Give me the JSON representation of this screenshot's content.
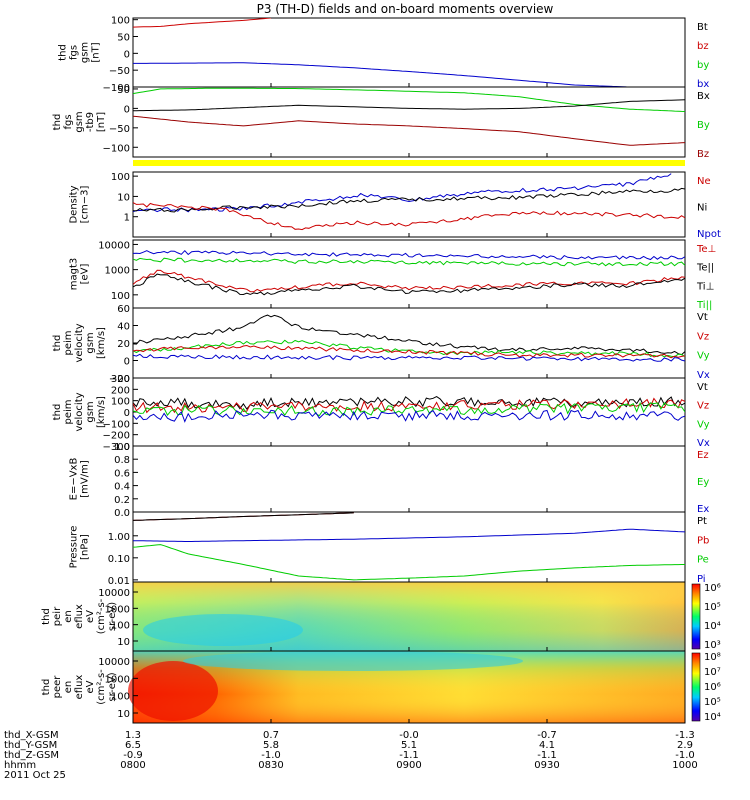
{
  "title": "P3 (TH-D) fields and on-board moments overview",
  "footer": {
    "row_labels": [
      "thd_X-GSM",
      "thd_Y-GSM",
      "thd_Z-GSM",
      "hhmm",
      "2011 Oct 25"
    ],
    "columns": [
      [
        "1.3",
        "6.5",
        "-0.9",
        "0800"
      ],
      [
        "0.7",
        "5.8",
        "-1.0",
        "0830"
      ],
      [
        "-0.0",
        "5.1",
        "-1.1",
        "0900"
      ],
      [
        "-0.7",
        "4.1",
        "-1.1",
        "0930"
      ],
      [
        "-1.3",
        "2.9",
        "-1.0",
        "1000"
      ]
    ]
  },
  "colorbar_ion": [
    "10⁶",
    "10⁵",
    "10⁴",
    "10³"
  ],
  "colorbar_ion_top": "10⁶",
  "colorbar_electron": [
    "10⁸",
    "10⁷",
    "10⁶",
    "10⁵",
    "10⁴"
  ],
  "colors": {
    "black": "#000000",
    "red": "#cc0000",
    "green": "#00cc00",
    "blue": "#0000cc",
    "darkred": "#990000",
    "yellow": "#ffff00"
  },
  "chart_data": {
    "type": "line",
    "x_range": [
      "0800",
      "1000"
    ],
    "panels": [
      {
        "id": "fgs",
        "ylabel": [
          "thd",
          "fgs",
          "gsm",
          "[nT]"
        ],
        "yticks": [
          "100",
          "50",
          "0",
          "−50",
          "−100"
        ],
        "ylim": [
          -100,
          105
        ],
        "scale": "linear",
        "legend": [
          {
            "text": "Bt",
            "color": "#000000"
          },
          {
            "text": "bz",
            "color": "#cc0000"
          },
          {
            "text": "by",
            "color": "#00cc00"
          },
          {
            "text": "bx",
            "color": "#0000cc"
          }
        ],
        "series": [
          {
            "color": "#cc0000",
            "x": [
              0,
              0.05,
              0.1,
              0.2,
              0.25
            ],
            "y": [
              78,
              80,
              88,
              98,
              105
            ]
          },
          {
            "color": "#0000cc",
            "x": [
              0,
              0.1,
              0.2,
              0.3,
              0.4,
              0.5,
              0.6,
              0.7,
              0.8,
              0.9,
              1.0
            ],
            "y": [
              -30,
              -29,
              -28,
              -34,
              -43,
              -54,
              -66,
              -80,
              -94,
              -100,
              -104
            ]
          }
        ]
      },
      {
        "id": "fgs_despun",
        "ylabel": [
          "thd",
          "fgs",
          "gsm",
          "-tb9",
          "[nT]"
        ],
        "yticks": [
          "50",
          "0",
          "−50",
          "−100"
        ],
        "ylim": [
          -125,
          55
        ],
        "scale": "linear",
        "legend": [
          {
            "text": "Bx",
            "color": "#000000"
          },
          {
            "text": "By",
            "color": "#00cc00"
          },
          {
            "text": "Bz",
            "color": "#990000"
          }
        ],
        "series": [
          {
            "color": "#00cc00",
            "x": [
              0,
              0.05,
              0.15,
              0.3,
              0.45,
              0.6,
              0.7,
              0.8,
              0.9,
              1.0
            ],
            "y": [
              38,
              50,
              52,
              51,
              46,
              40,
              30,
              10,
              -2,
              -8
            ]
          },
          {
            "color": "#000000",
            "x": [
              0,
              0.1,
              0.2,
              0.3,
              0.4,
              0.5,
              0.6,
              0.7,
              0.8,
              0.9,
              1.0
            ],
            "y": [
              -6,
              -4,
              2,
              8,
              4,
              0,
              -2,
              0,
              6,
              18,
              22
            ]
          },
          {
            "color": "#990000",
            "x": [
              0,
              0.1,
              0.2,
              0.3,
              0.4,
              0.5,
              0.6,
              0.7,
              0.8,
              0.9,
              1.0
            ],
            "y": [
              -20,
              -35,
              -45,
              -32,
              -40,
              -45,
              -52,
              -60,
              -78,
              -95,
              -88
            ]
          }
        ]
      },
      {
        "id": "density",
        "ylabel": [
          "Density",
          "[cm−3]"
        ],
        "yticks": [
          "100",
          "10",
          "1"
        ],
        "ylim": [
          0.1,
          160
        ],
        "scale": "log",
        "legend": [
          {
            "text": "Ne",
            "color": "#cc0000"
          },
          {
            "text": "Ni",
            "color": "#000000"
          },
          {
            "text": "Npot",
            "color": "#0000cc"
          }
        ],
        "series": [
          {
            "color": "#0000cc",
            "x": [
              0,
              0.1,
              0.2,
              0.3,
              0.42,
              0.5,
              0.6,
              0.7,
              0.8,
              0.9,
              0.98
            ],
            "y": [
              2.2,
              2.2,
              2.5,
              5,
              12,
              6,
              14,
              20,
              25,
              40,
              150
            ]
          },
          {
            "color": "#000000",
            "x": [
              0,
              0.1,
              0.2,
              0.3,
              0.4,
              0.5,
              0.6,
              0.7,
              0.8,
              0.9,
              1.0
            ],
            "y": [
              2.0,
              2.2,
              3.0,
              3.5,
              6,
              7,
              8,
              9,
              12,
              18,
              20
            ]
          },
          {
            "color": "#cc0000",
            "x": [
              0,
              0.1,
              0.18,
              0.25,
              0.3,
              0.4,
              0.5,
              0.6,
              0.7,
              0.8,
              0.9,
              1.0
            ],
            "y": [
              4,
              3,
              2,
              0.5,
              0.25,
              0.5,
              0.4,
              0.8,
              1.5,
              1.5,
              1.2,
              1.0
            ]
          }
        ]
      },
      {
        "id": "temp",
        "ylabel": [
          "magt3",
          "[eV]"
        ],
        "yticks": [
          "10000",
          "1000",
          "100"
        ],
        "ylim": [
          30,
          15000
        ],
        "scale": "log",
        "legend": [
          {
            "text": "Te⊥",
            "color": "#cc0000"
          },
          {
            "text": "Te||",
            "color": "#000000"
          },
          {
            "text": "Ti⊥",
            "color": "#000000"
          },
          {
            "text": "Ti||",
            "color": "#00cc00"
          }
        ],
        "series": [
          {
            "color": "#0000cc",
            "x": [
              0,
              0.2,
              0.4,
              0.6,
              0.8,
              1.0
            ],
            "y": [
              5000,
              4500,
              4000,
              3500,
              3000,
              3000
            ]
          },
          {
            "color": "#00cc00",
            "x": [
              0,
              0.2,
              0.4,
              0.6,
              0.8,
              1.0
            ],
            "y": [
              2500,
              2200,
              2000,
              1800,
              1700,
              1700
            ]
          },
          {
            "color": "#cc0000",
            "x": [
              0,
              0.05,
              0.1,
              0.2,
              0.3,
              0.4,
              0.5,
              0.6,
              0.7,
              0.8,
              0.9,
              1.0
            ],
            "y": [
              300,
              900,
              500,
              150,
              200,
              300,
              180,
              200,
              250,
              300,
              280,
              500
            ]
          },
          {
            "color": "#000000",
            "x": [
              0,
              0.05,
              0.1,
              0.2,
              0.3,
              0.4,
              0.5,
              0.6,
              0.7,
              0.8,
              0.9,
              1.0
            ],
            "y": [
              200,
              700,
              350,
              100,
              150,
              220,
              130,
              150,
              200,
              250,
              230,
              400
            ]
          }
        ]
      },
      {
        "id": "velocity_esa",
        "ylabel": [
          "thd",
          "peim",
          "velocity",
          "gsm",
          "[km/s]"
        ],
        "yticks": [
          "60",
          "40",
          "20",
          "0",
          "−20"
        ],
        "ylim": [
          -20,
          60
        ],
        "scale": "linear",
        "legend": [
          {
            "text": "Vt",
            "color": "#000000"
          },
          {
            "text": "Vz",
            "color": "#cc0000"
          },
          {
            "text": "Vy",
            "color": "#00cc00"
          },
          {
            "text": "Vx",
            "color": "#0000cc"
          }
        ],
        "series": [
          {
            "color": "#000000",
            "x": [
              0,
              0.1,
              0.2,
              0.25,
              0.3,
              0.4,
              0.5,
              0.6,
              0.7,
              0.8,
              0.9,
              1.0
            ],
            "y": [
              20,
              28,
              38,
              52,
              38,
              30,
              22,
              15,
              12,
              14,
              12,
              8
            ]
          },
          {
            "color": "#00cc00",
            "x": [
              0,
              0.1,
              0.2,
              0.3,
              0.4,
              0.5,
              0.6,
              0.7,
              0.8,
              0.9,
              1.0
            ],
            "y": [
              10,
              15,
              20,
              22,
              15,
              10,
              8,
              10,
              8,
              8,
              5
            ]
          },
          {
            "color": "#cc0000",
            "x": [
              0,
              0.1,
              0.2,
              0.3,
              0.4,
              0.5,
              0.6,
              0.7,
              0.8,
              0.9,
              1.0
            ],
            "y": [
              12,
              14,
              15,
              14,
              12,
              10,
              8,
              6,
              6,
              6,
              4
            ]
          },
          {
            "color": "#0000cc",
            "x": [
              0,
              0.2,
              0.4,
              0.6,
              0.8,
              1.0
            ],
            "y": [
              5,
              4,
              3,
              3,
              2,
              1
            ]
          }
        ]
      },
      {
        "id": "velocity_burst",
        "ylabel": [
          "thd",
          "peim",
          "velocity",
          "gsm",
          "[km/s]"
        ],
        "yticks": [
          "300",
          "200",
          "100",
          "0",
          "−100",
          "−200",
          "−300"
        ],
        "ylim": [
          -300,
          300
        ],
        "scale": "linear",
        "legend": [
          {
            "text": "Vt",
            "color": "#000000"
          },
          {
            "text": "Vz",
            "color": "#cc0000"
          },
          {
            "text": "Vy",
            "color": "#00cc00"
          },
          {
            "text": "Vx",
            "color": "#0000cc"
          }
        ],
        "series": [
          {
            "color": "#000000",
            "x": [
              0,
              0.2,
              0.4,
              0.6,
              0.8,
              1.0
            ],
            "y": [
              90,
              70,
              100,
              90,
              80,
              100
            ]
          },
          {
            "color": "#cc0000",
            "x": [
              0,
              0.2,
              0.4,
              0.6,
              0.8,
              1.0
            ],
            "y": [
              40,
              40,
              50,
              60,
              70,
              80
            ]
          },
          {
            "color": "#00cc00",
            "x": [
              0,
              0.2,
              0.4,
              0.6,
              0.8,
              1.0
            ],
            "y": [
              20,
              10,
              10,
              20,
              30,
              40
            ]
          },
          {
            "color": "#0000cc",
            "x": [
              0,
              0.2,
              0.4,
              0.6,
              0.8,
              1.0
            ],
            "y": [
              -60,
              -20,
              -40,
              -30,
              -30,
              -30
            ]
          }
        ]
      },
      {
        "id": "efield",
        "ylabel": [
          "E=−VxB",
          "[mV/m]"
        ],
        "yticks": [
          "1.0",
          "0.8",
          "0.6",
          "0.4",
          "0.2",
          "0.0"
        ],
        "ylim": [
          0,
          1
        ],
        "scale": "linear",
        "legend": [
          {
            "text": "Ez",
            "color": "#cc0000"
          },
          {
            "text": "Ey",
            "color": "#00cc00"
          },
          {
            "text": "Ex",
            "color": "#0000cc"
          }
        ],
        "series": []
      },
      {
        "id": "pressure",
        "ylabel": [
          "Pressure",
          "[nPa]"
        ],
        "yticks": [
          "1.00",
          "0.10",
          "0.01"
        ],
        "ylim": [
          0.008,
          12
        ],
        "scale": "log",
        "legend": [
          {
            "text": "Pt",
            "color": "#000000"
          },
          {
            "text": "Pb",
            "color": "#cc0000"
          },
          {
            "text": "Pe",
            "color": "#00cc00"
          },
          {
            "text": "Pi",
            "color": "#0000cc"
          }
        ],
        "series": [
          {
            "color": "#990000",
            "x": [
              0,
              0.1,
              0.2,
              0.3,
              0.4
            ],
            "y": [
              5,
              6,
              7.5,
              9,
              11
            ]
          },
          {
            "color": "#000000",
            "x": [
              0,
              0.1,
              0.2,
              0.3,
              0.4
            ],
            "y": [
              5,
              6,
              7.5,
              9,
              11
            ]
          },
          {
            "color": "#0000cc",
            "x": [
              0,
              0.1,
              0.2,
              0.4,
              0.6,
              0.8,
              0.9,
              1.0
            ],
            "y": [
              0.6,
              0.55,
              0.6,
              0.7,
              0.9,
              1.3,
              2.0,
              1.5
            ]
          },
          {
            "color": "#00cc00",
            "x": [
              0,
              0.05,
              0.1,
              0.2,
              0.3,
              0.4,
              0.5,
              0.6,
              0.7,
              0.8,
              0.9,
              1.0
            ],
            "y": [
              0.3,
              0.4,
              0.15,
              0.05,
              0.015,
              0.01,
              0.012,
              0.015,
              0.025,
              0.035,
              0.045,
              0.05
            ]
          }
        ]
      },
      {
        "id": "ion_spec",
        "type": "heatmap",
        "ylabel": [
          "thd",
          "peir",
          "en",
          "eflux",
          "eV",
          "(cm²-s-",
          "sr-eV)"
        ],
        "yticks": [
          "10000",
          "1000",
          "100",
          "10"
        ],
        "scale": "log"
      },
      {
        "id": "electron_spec",
        "type": "heatmap",
        "ylabel": [
          "thd",
          "peer",
          "en",
          "eflux",
          "eV",
          "(cm²-s-",
          "sr-eV)"
        ],
        "yticks": [
          "10000",
          "1000",
          "100",
          "10"
        ],
        "scale": "log"
      }
    ]
  }
}
